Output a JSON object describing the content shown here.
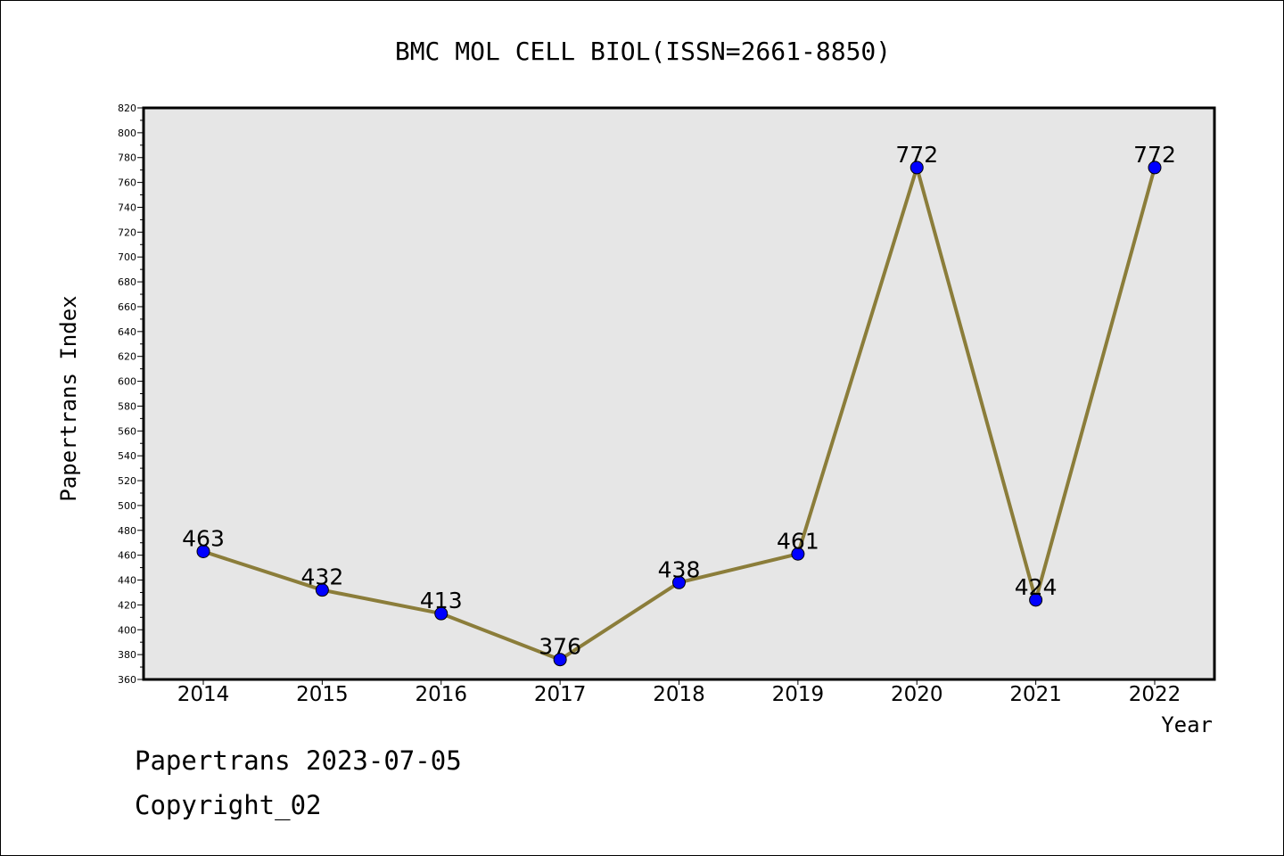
{
  "chart_data": {
    "type": "line",
    "title": "BMC MOL CELL BIOL(ISSN=2661-8850)",
    "xlabel": "Year",
    "ylabel": "Papertrans Index",
    "categories": [
      "2014",
      "2015",
      "2016",
      "2017",
      "2018",
      "2019",
      "2020",
      "2021",
      "2022"
    ],
    "series": [
      {
        "values": [
          463,
          432,
          413,
          376,
          438,
          461,
          772,
          424,
          772
        ]
      }
    ],
    "ylim": [
      360,
      820
    ],
    "ytick_step": 20,
    "grid": false,
    "plot_background": "#e6e6e6",
    "line_color": "#8b7d3a",
    "marker_color": "#0000ff"
  },
  "footer": {
    "line1": "Papertrans 2023-07-05",
    "line2": "Copyright_02"
  }
}
